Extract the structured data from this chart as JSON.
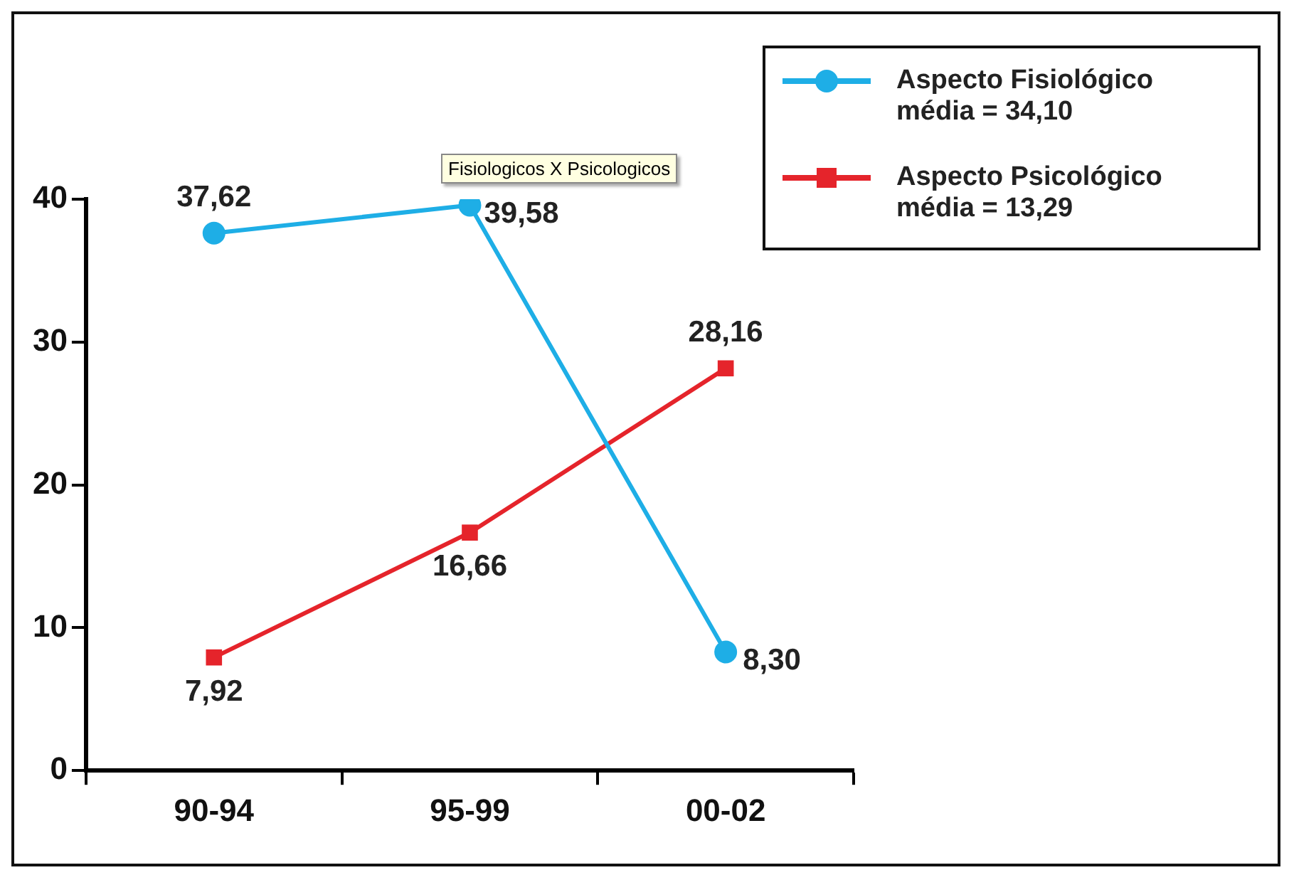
{
  "chart_data": {
    "type": "line",
    "categories": [
      "90-94",
      "95-99",
      "00-02"
    ],
    "series": [
      {
        "name": "Aspecto Fisiológico\nmédia = 34,10",
        "color": "#1eaee6",
        "marker": "circle",
        "values": [
          37.62,
          39.58,
          8.3
        ],
        "value_labels": [
          "37,62",
          "39,58",
          "8,30"
        ]
      },
      {
        "name": "Aspecto Psicológico\nmédia = 13,29",
        "color": "#e5242b",
        "marker": "square",
        "values": [
          7.92,
          16.66,
          28.16
        ],
        "value_labels": [
          "7,92",
          "16,66",
          "28,16"
        ]
      }
    ],
    "ylim": [
      0,
      40
    ],
    "yticks": [
      0,
      10,
      20,
      30,
      40
    ],
    "grid": false,
    "legend": "top right",
    "line_style": "solid",
    "annotations": [
      "Fisiologicos X Psicologicos"
    ]
  }
}
